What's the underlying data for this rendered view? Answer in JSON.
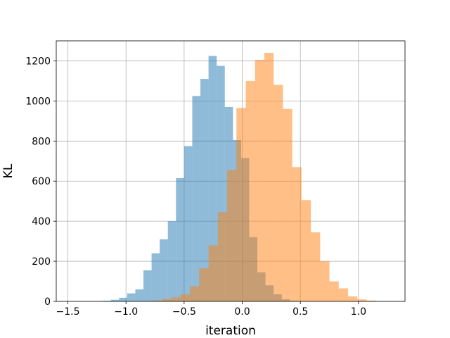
{
  "chart_data": {
    "type": "bar",
    "subtype": "histogram",
    "title": "",
    "xlabel": "iteration",
    "ylabel": "KL",
    "xlim": [
      -1.6,
      1.4
    ],
    "ylim": [
      0,
      1300
    ],
    "xticks": [
      -1.5,
      -1.0,
      -0.5,
      0.0,
      0.5,
      1.0
    ],
    "xtick_labels": [
      "−1.5",
      "−1.0",
      "−0.5",
      "0.0",
      "0.5",
      "1.0"
    ],
    "yticks": [
      0,
      200,
      400,
      600,
      800,
      1000,
      1200
    ],
    "ytick_labels": [
      "0",
      "200",
      "400",
      "600",
      "800",
      "1000",
      "1200"
    ],
    "grid": true,
    "legend": "none",
    "series": [
      {
        "color": "#1f77b4",
        "alpha": 0.5,
        "bins": [
          {
            "x0": -1.2,
            "x1": -1.13,
            "value": 3
          },
          {
            "x0": -1.13,
            "x1": -1.06,
            "value": 8
          },
          {
            "x0": -1.06,
            "x1": -0.99,
            "value": 18
          },
          {
            "x0": -0.99,
            "x1": -0.92,
            "value": 40
          },
          {
            "x0": -0.92,
            "x1": -0.85,
            "value": 60
          },
          {
            "x0": -0.85,
            "x1": -0.78,
            "value": 155
          },
          {
            "x0": -0.78,
            "x1": -0.71,
            "value": 240
          },
          {
            "x0": -0.71,
            "x1": -0.64,
            "value": 310
          },
          {
            "x0": -0.64,
            "x1": -0.57,
            "value": 400
          },
          {
            "x0": -0.57,
            "x1": -0.5,
            "value": 615
          },
          {
            "x0": -0.5,
            "x1": -0.43,
            "value": 775
          },
          {
            "x0": -0.43,
            "x1": -0.36,
            "value": 1025
          },
          {
            "x0": -0.36,
            "x1": -0.29,
            "value": 1110
          },
          {
            "x0": -0.29,
            "x1": -0.22,
            "value": 1225
          },
          {
            "x0": -0.22,
            "x1": -0.15,
            "value": 1175
          },
          {
            "x0": -0.15,
            "x1": -0.08,
            "value": 970
          },
          {
            "x0": -0.08,
            "x1": -0.01,
            "value": 805
          },
          {
            "x0": -0.01,
            "x1": 0.06,
            "value": 715
          },
          {
            "x0": 0.06,
            "x1": 0.13,
            "value": 320
          },
          {
            "x0": 0.13,
            "x1": 0.2,
            "value": 145
          },
          {
            "x0": 0.2,
            "x1": 0.27,
            "value": 80
          },
          {
            "x0": 0.27,
            "x1": 0.34,
            "value": 35
          },
          {
            "x0": 0.34,
            "x1": 0.41,
            "value": 10
          },
          {
            "x0": 0.41,
            "x1": 0.48,
            "value": 3
          }
        ]
      },
      {
        "color": "#ff7f0e",
        "alpha": 0.5,
        "bins": [
          {
            "x0": -0.85,
            "x1": -0.77,
            "value": 2
          },
          {
            "x0": -0.77,
            "x1": -0.69,
            "value": 5
          },
          {
            "x0": -0.69,
            "x1": -0.61,
            "value": 12
          },
          {
            "x0": -0.61,
            "x1": -0.53,
            "value": 20
          },
          {
            "x0": -0.53,
            "x1": -0.45,
            "value": 35
          },
          {
            "x0": -0.45,
            "x1": -0.37,
            "value": 75
          },
          {
            "x0": -0.37,
            "x1": -0.29,
            "value": 165
          },
          {
            "x0": -0.29,
            "x1": -0.21,
            "value": 280
          },
          {
            "x0": -0.21,
            "x1": -0.13,
            "value": 445
          },
          {
            "x0": -0.13,
            "x1": -0.05,
            "value": 655
          },
          {
            "x0": -0.05,
            "x1": 0.03,
            "value": 965
          },
          {
            "x0": 0.03,
            "x1": 0.11,
            "value": 1100
          },
          {
            "x0": 0.11,
            "x1": 0.19,
            "value": 1205
          },
          {
            "x0": 0.19,
            "x1": 0.27,
            "value": 1240
          },
          {
            "x0": 0.27,
            "x1": 0.35,
            "value": 1080
          },
          {
            "x0": 0.35,
            "x1": 0.43,
            "value": 960
          },
          {
            "x0": 0.43,
            "x1": 0.51,
            "value": 670
          },
          {
            "x0": 0.51,
            "x1": 0.59,
            "value": 505
          },
          {
            "x0": 0.59,
            "x1": 0.67,
            "value": 345
          },
          {
            "x0": 0.67,
            "x1": 0.75,
            "value": 200
          },
          {
            "x0": 0.75,
            "x1": 0.83,
            "value": 100
          },
          {
            "x0": 0.83,
            "x1": 0.91,
            "value": 65
          },
          {
            "x0": 0.91,
            "x1": 0.99,
            "value": 25
          },
          {
            "x0": 0.99,
            "x1": 1.07,
            "value": 10
          },
          {
            "x0": 1.07,
            "x1": 1.15,
            "value": 4
          }
        ]
      }
    ]
  }
}
